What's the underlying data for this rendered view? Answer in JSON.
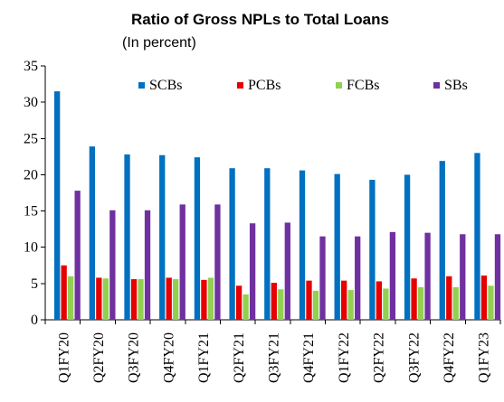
{
  "chart_data": {
    "type": "bar",
    "title": "Ratio of Gross NPLs to Total Loans",
    "subtitle": "(In percent)",
    "xlabel": "",
    "ylabel": "",
    "ylim": [
      0,
      35
    ],
    "yticks": [
      0,
      5,
      10,
      15,
      20,
      25,
      30,
      35
    ],
    "grid": false,
    "legend_position": "top",
    "categories": [
      "Q1FY20",
      "Q2FY20",
      "Q3FY20",
      "Q4FY20",
      "Q1FY21",
      "Q2FY21",
      "Q3FY21",
      "Q4FY21",
      "Q1FY22",
      "Q2FY22",
      "Q3FY22",
      "Q4FY22",
      "Q1FY23"
    ],
    "series": [
      {
        "name": "SCBs",
        "color": "#0070C0",
        "values": [
          31.5,
          23.9,
          22.8,
          22.7,
          22.4,
          20.9,
          20.9,
          20.6,
          20.1,
          19.3,
          20.0,
          21.9,
          23.0
        ]
      },
      {
        "name": "PCBs",
        "color": "#E60000",
        "values": [
          7.5,
          5.8,
          5.6,
          5.8,
          5.5,
          4.7,
          5.1,
          5.4,
          5.4,
          5.3,
          5.7,
          6.0,
          6.1
        ]
      },
      {
        "name": "FCBs",
        "color": "#92D050",
        "values": [
          6.0,
          5.7,
          5.6,
          5.6,
          5.8,
          3.5,
          4.2,
          4.0,
          4.1,
          4.3,
          4.5,
          4.5,
          4.7
        ]
      },
      {
        "name": "SBs",
        "color": "#7030A0",
        "values": [
          17.8,
          15.1,
          15.1,
          15.9,
          15.9,
          13.3,
          13.4,
          11.5,
          11.5,
          12.1,
          12.0,
          11.8,
          11.8
        ]
      }
    ]
  }
}
